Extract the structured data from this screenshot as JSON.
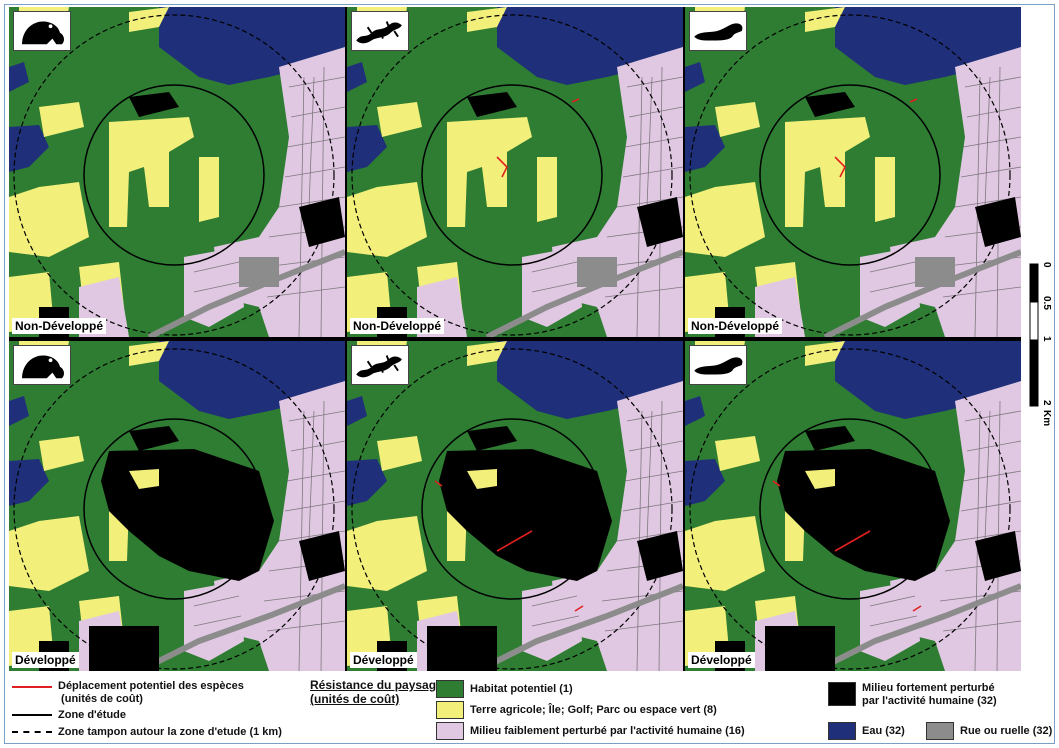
{
  "panels": [
    {
      "animal": "frog-icon",
      "label": "Non-Développé"
    },
    {
      "animal": "salamander-icon",
      "label": "Non-Développé"
    },
    {
      "animal": "mink-icon",
      "label": "Non-Développé"
    },
    {
      "animal": "frog-icon",
      "label": "Développé"
    },
    {
      "animal": "salamander-icon",
      "label": "Développé"
    },
    {
      "animal": "mink-icon",
      "label": "Développé"
    }
  ],
  "scale": {
    "ticks": [
      "0",
      "0.5",
      "1",
      "2"
    ],
    "unit": "Km"
  },
  "colors": {
    "habitat": "#2e7d32",
    "agri": "#f2ef7a",
    "light": "#e0c8e2",
    "heavy": "#000000",
    "water": "#1f2f7a",
    "road": "#8c8c8c",
    "move": "#e02020"
  },
  "legend": {
    "lines": [
      {
        "label": "Déplacement potentiel des espèces\n (unités de coût)"
      },
      {
        "label": "Zone d'étude"
      },
      {
        "label": "Zone tampon autour la zone d'etude (1 km)"
      }
    ],
    "resistance_title": "Résistance du paysage:\n(unités de coût)",
    "classes": [
      {
        "label": "Habitat potentiel (1)"
      },
      {
        "label": "Terre agricole; Île; Golf; Parc ou espace vert (8)"
      },
      {
        "label": "Milieu faiblement perturbé par l'activité humaine (16)"
      },
      {
        "label": "Milieu fortement perturbé\npar l'activité humaine (32)"
      },
      {
        "label": "Eau (32)"
      },
      {
        "label": "Rue ou ruelle (32)"
      }
    ]
  }
}
